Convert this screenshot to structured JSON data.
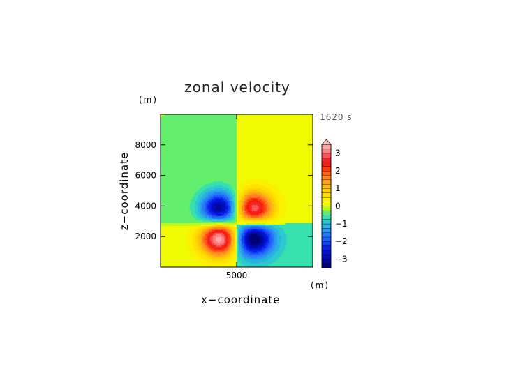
{
  "chart_data": {
    "type": "heatmap",
    "title": "zonal velocity",
    "xlabel": "x−coordinate",
    "ylabel": "z−coordinate",
    "x_unit": "(m)",
    "z_unit": "(m)",
    "time_label": "1620 s",
    "xlim": [
      0,
      10000
    ],
    "ylim": [
      0,
      10000
    ],
    "x_ticks": [
      {
        "value": 5000,
        "label": "5000"
      }
    ],
    "y_ticks": [
      {
        "value": 2000,
        "label": "2000"
      },
      {
        "value": 4000,
        "label": "4000"
      },
      {
        "value": 6000,
        "label": "6000"
      },
      {
        "value": 8000,
        "label": "8000"
      }
    ],
    "field": {
      "description_of_extrema": "four lobes",
      "lobes": [
        {
          "x": 3900,
          "z": 3800,
          "value": -3.2
        },
        {
          "x": 6100,
          "z": 3800,
          "value": 3.1
        },
        {
          "x": 3900,
          "z": 1950,
          "value": 3.6
        },
        {
          "x": 6100,
          "z": 1950,
          "value": -3.3
        }
      ],
      "upper_left_background": -0.25,
      "upper_right_background": 0.1,
      "lower_left_background": 0.1,
      "lower_right_background": -0.6
    },
    "colorbar": {
      "min": -3.5,
      "max": 3.5,
      "step": 0.25,
      "extend": "max",
      "tick_labels": [
        {
          "value": 3,
          "label": "3"
        },
        {
          "value": 2,
          "label": "2"
        },
        {
          "value": 1,
          "label": "1"
        },
        {
          "value": 0,
          "label": "0"
        },
        {
          "value": -1,
          "label": "−1"
        },
        {
          "value": -2,
          "label": "−2"
        },
        {
          "value": -3,
          "label": "−3"
        }
      ]
    }
  }
}
